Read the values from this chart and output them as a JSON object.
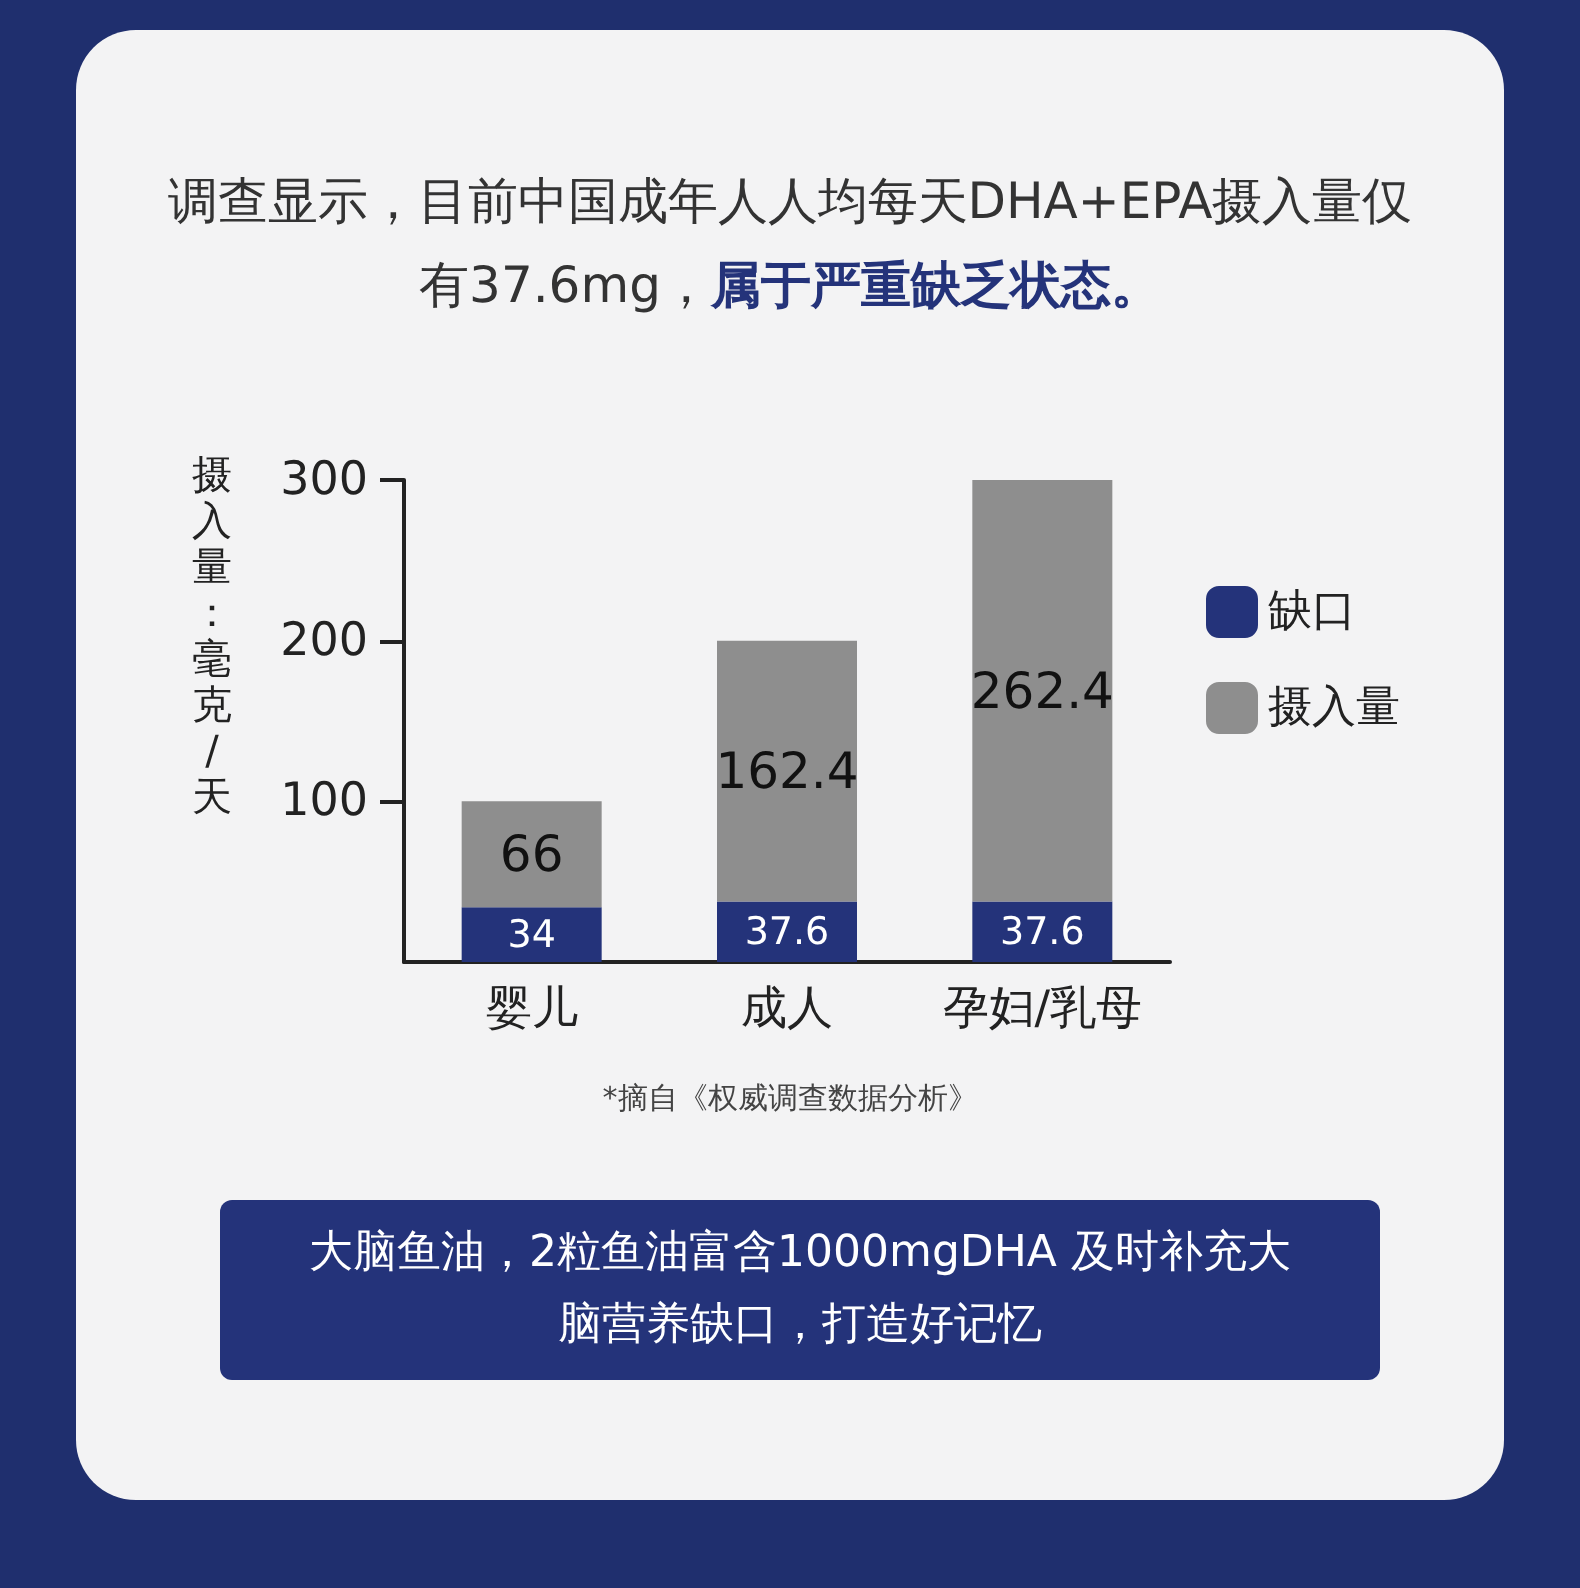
{
  "chart_data": {
    "type": "bar",
    "title": "调查显示，目前中国成年人人均每天DHA+EPA摄入量仅有37.6mg，",
    "subtitle": "属于严重缺乏状态。",
    "ylabel": "摄入量：毫克/天",
    "categories": [
      "婴儿",
      "成人",
      "孕妇/乳母"
    ],
    "series": [
      {
        "name": "缺口",
        "color": "#24337a",
        "values": [
          34,
          37.6,
          37.6
        ]
      },
      {
        "name": "摄入量",
        "color": "#8e8e8e",
        "values": [
          66,
          162.4,
          262.4
        ]
      }
    ],
    "stacked": true,
    "data_labels": true,
    "ylim": [
      0,
      300
    ],
    "yticks": [
      100,
      200,
      300
    ],
    "grid": false,
    "legend": "right",
    "annotations": [
      "*摘自《权威调查数据分析》",
      "大脑鱼油，2粒鱼油富含1000mgDHA 及时补充大脑营养缺口，打造好记忆"
    ]
  }
}
